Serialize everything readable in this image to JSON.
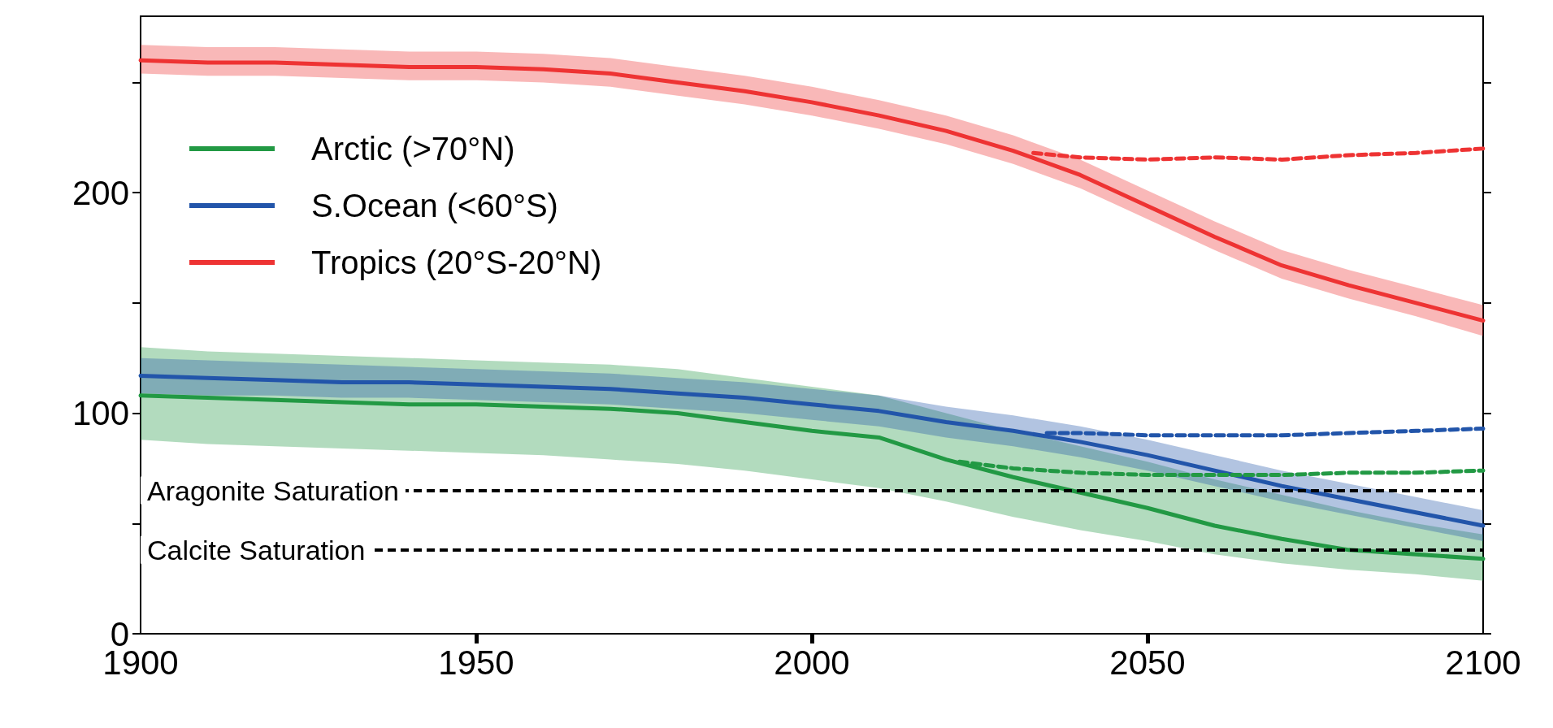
{
  "chart_data": {
    "type": "line",
    "xlim": [
      1900,
      2100
    ],
    "xticks": [
      1900,
      1950,
      2000,
      2050,
      2100
    ],
    "ylim": [
      0,
      280
    ],
    "yticks": [
      0,
      {
        "value": 50,
        "label": null
      },
      100,
      {
        "value": 150,
        "label": null
      },
      200,
      {
        "value": 250,
        "label": null
      }
    ],
    "grid": false,
    "legend": "top left",
    "marker": "none",
    "series": [
      {
        "name": "Arctic (>70°N)",
        "color": "#229944",
        "x": [
          1900,
          1910,
          1920,
          1930,
          1940,
          1950,
          1960,
          1970,
          1980,
          1990,
          2000,
          2010,
          2020,
          2030,
          2040,
          2050,
          2060,
          2070,
          2080,
          2090,
          2100
        ],
        "values": [
          108,
          107,
          106,
          105,
          104,
          104,
          103,
          102,
          100,
          96,
          92,
          89,
          79,
          71,
          64,
          57,
          49,
          43,
          38,
          36,
          34
        ],
        "lower": [
          88,
          86,
          85,
          84,
          83,
          82,
          81,
          79,
          77,
          74,
          70,
          66,
          60,
          53,
          47,
          42,
          36,
          32,
          29,
          27,
          24
        ],
        "upper": [
          130,
          128,
          127,
          126,
          125,
          124,
          123,
          122,
          120,
          116,
          112,
          108,
          100,
          92,
          85,
          78,
          70,
          63,
          56,
          50,
          45
        ]
      },
      {
        "name": "S.Ocean (<60°S)",
        "color": "#2255aa",
        "x": [
          1900,
          1910,
          1920,
          1930,
          1940,
          1950,
          1960,
          1970,
          1980,
          1990,
          2000,
          2010,
          2020,
          2030,
          2040,
          2050,
          2060,
          2070,
          2080,
          2090,
          2100
        ],
        "values": [
          117,
          116,
          115,
          114,
          114,
          113,
          112,
          111,
          109,
          107,
          104,
          101,
          96,
          92,
          87,
          81,
          74,
          67,
          61,
          55,
          49
        ],
        "lower": [
          109,
          108,
          108,
          107,
          107,
          106,
          105,
          104,
          102,
          100,
          97,
          94,
          89,
          85,
          80,
          74,
          67,
          60,
          54,
          48,
          42
        ],
        "upper": [
          125,
          124,
          123,
          122,
          121,
          120,
          119,
          118,
          116,
          114,
          111,
          108,
          103,
          99,
          94,
          88,
          81,
          74,
          68,
          62,
          56
        ]
      },
      {
        "name": "Tropics (20°S-20°N)",
        "color": "#ee3333",
        "x": [
          1900,
          1910,
          1920,
          1930,
          1940,
          1950,
          1960,
          1970,
          1980,
          1990,
          2000,
          2010,
          2020,
          2030,
          2040,
          2050,
          2060,
          2070,
          2080,
          2090,
          2100
        ],
        "values": [
          260,
          259,
          259,
          258,
          257,
          257,
          256,
          254,
          250,
          246,
          241,
          235,
          228,
          219,
          208,
          194,
          180,
          167,
          158,
          150,
          142
        ],
        "lower": [
          254,
          253,
          253,
          252,
          251,
          251,
          250,
          248,
          244,
          240,
          235,
          229,
          222,
          213,
          202,
          188,
          174,
          161,
          152,
          144,
          135
        ],
        "upper": [
          267,
          266,
          266,
          265,
          264,
          264,
          263,
          261,
          257,
          253,
          248,
          242,
          235,
          226,
          215,
          201,
          187,
          174,
          165,
          157,
          149
        ]
      },
      {
        "color": "#229944",
        "line_style": "dashed",
        "x": [
          2022,
          2030,
          2040,
          2050,
          2060,
          2070,
          2080,
          2090,
          2100
        ],
        "values": [
          78,
          75,
          73,
          72,
          72,
          72,
          73,
          73,
          74
        ]
      },
      {
        "color": "#2255aa",
        "line_style": "dashed",
        "x": [
          2035,
          2040,
          2050,
          2060,
          2070,
          2080,
          2090,
          2100
        ],
        "values": [
          91,
          91,
          90,
          90,
          90,
          91,
          92,
          93
        ]
      },
      {
        "color": "#ee3333",
        "line_style": "dashed",
        "x": [
          2033,
          2040,
          2050,
          2060,
          2070,
          2080,
          2090,
          2100
        ],
        "values": [
          218,
          216,
          215,
          216,
          215,
          217,
          218,
          220
        ]
      }
    ],
    "ref_lines": [
      {
        "axis": "y",
        "value": 65,
        "label": "Aragonite Saturation",
        "color": "#000000",
        "line_style": "dashed"
      },
      {
        "axis": "y",
        "value": 38,
        "label": "Calcite Saturation",
        "color": "#000000",
        "line_style": "dashed"
      }
    ]
  }
}
